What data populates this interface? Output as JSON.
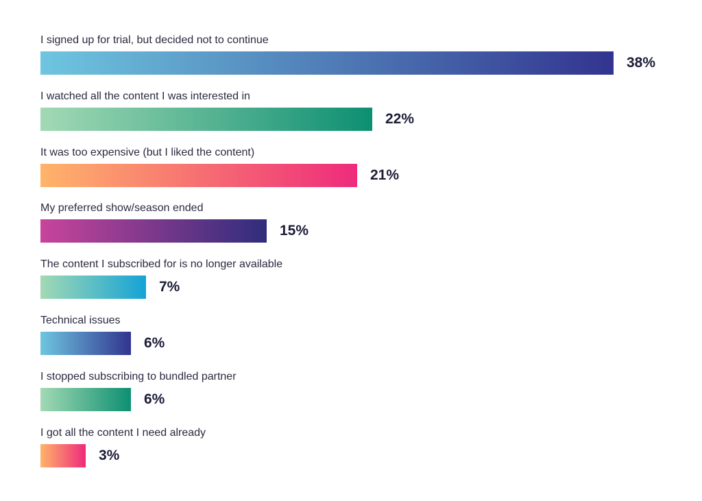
{
  "chart_data": {
    "type": "bar",
    "orientation": "horizontal",
    "value_suffix": "%",
    "categories": [
      "I signed up for trial, but decided not to continue",
      "I watched all the content I was interested in",
      "It was too expensive (but I liked the content)",
      "My preferred show/season ended",
      "The content I subscribed for is no longer available",
      "Technical issues",
      "I stopped subscribing to bundled partner",
      "I got all the content I need already"
    ],
    "values": [
      38,
      22,
      21,
      15,
      7,
      6,
      6,
      3
    ],
    "value_labels": [
      "38%",
      "22%",
      "21%",
      "15%",
      "7%",
      "6%",
      "6%",
      "3%"
    ],
    "gradients": [
      [
        "#6ec6e0",
        "#32348f"
      ],
      [
        "#a2d9b4",
        "#0d8f72"
      ],
      [
        "#ffb46a",
        "#ee2b7b"
      ],
      [
        "#c8449b",
        "#2f2d7c"
      ],
      [
        "#a2d9b4",
        "#15a3d6"
      ],
      [
        "#6ec6e0",
        "#32348f"
      ],
      [
        "#a2d9b4",
        "#0d8f72"
      ],
      [
        "#ffb46a",
        "#ee2b7b"
      ]
    ],
    "title": "",
    "xlabel": "",
    "ylabel": "",
    "xlim": [
      0,
      38
    ],
    "grid": false,
    "legend": "none"
  }
}
